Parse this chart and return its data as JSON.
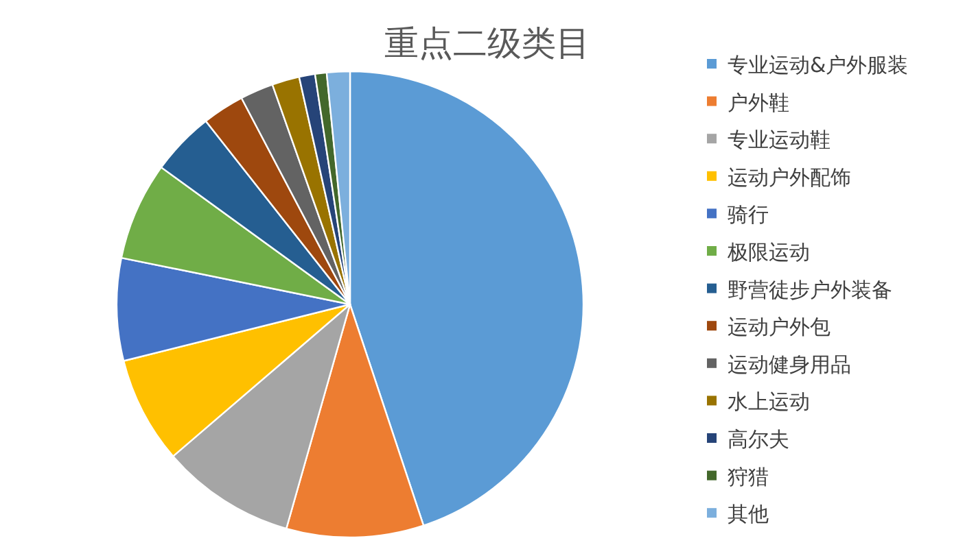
{
  "chart_data": {
    "type": "pie",
    "title": "重点二级类目",
    "legend": "right",
    "categories": [
      "专业运动&户外服装",
      "户外鞋",
      "专业运动鞋",
      "运动户外配饰",
      "骑行",
      "极限运动",
      "野营徒步户外装备",
      "运动户外包",
      "运动健身用品",
      "水上运动",
      "高尔夫",
      "狩猎",
      "其他"
    ],
    "values": [
      44.9,
      9.5,
      9.3,
      7.4,
      7.1,
      6.8,
      4.4,
      2.9,
      2.3,
      1.9,
      1.1,
      0.8,
      1.6
    ],
    "colors": [
      "#5b9bd5",
      "#ed7d31",
      "#a5a5a5",
      "#ffc000",
      "#4472c4",
      "#70ad47",
      "#255e91",
      "#9e480e",
      "#636363",
      "#997300",
      "#264478",
      "#43682b",
      "#7cafdd"
    ]
  }
}
